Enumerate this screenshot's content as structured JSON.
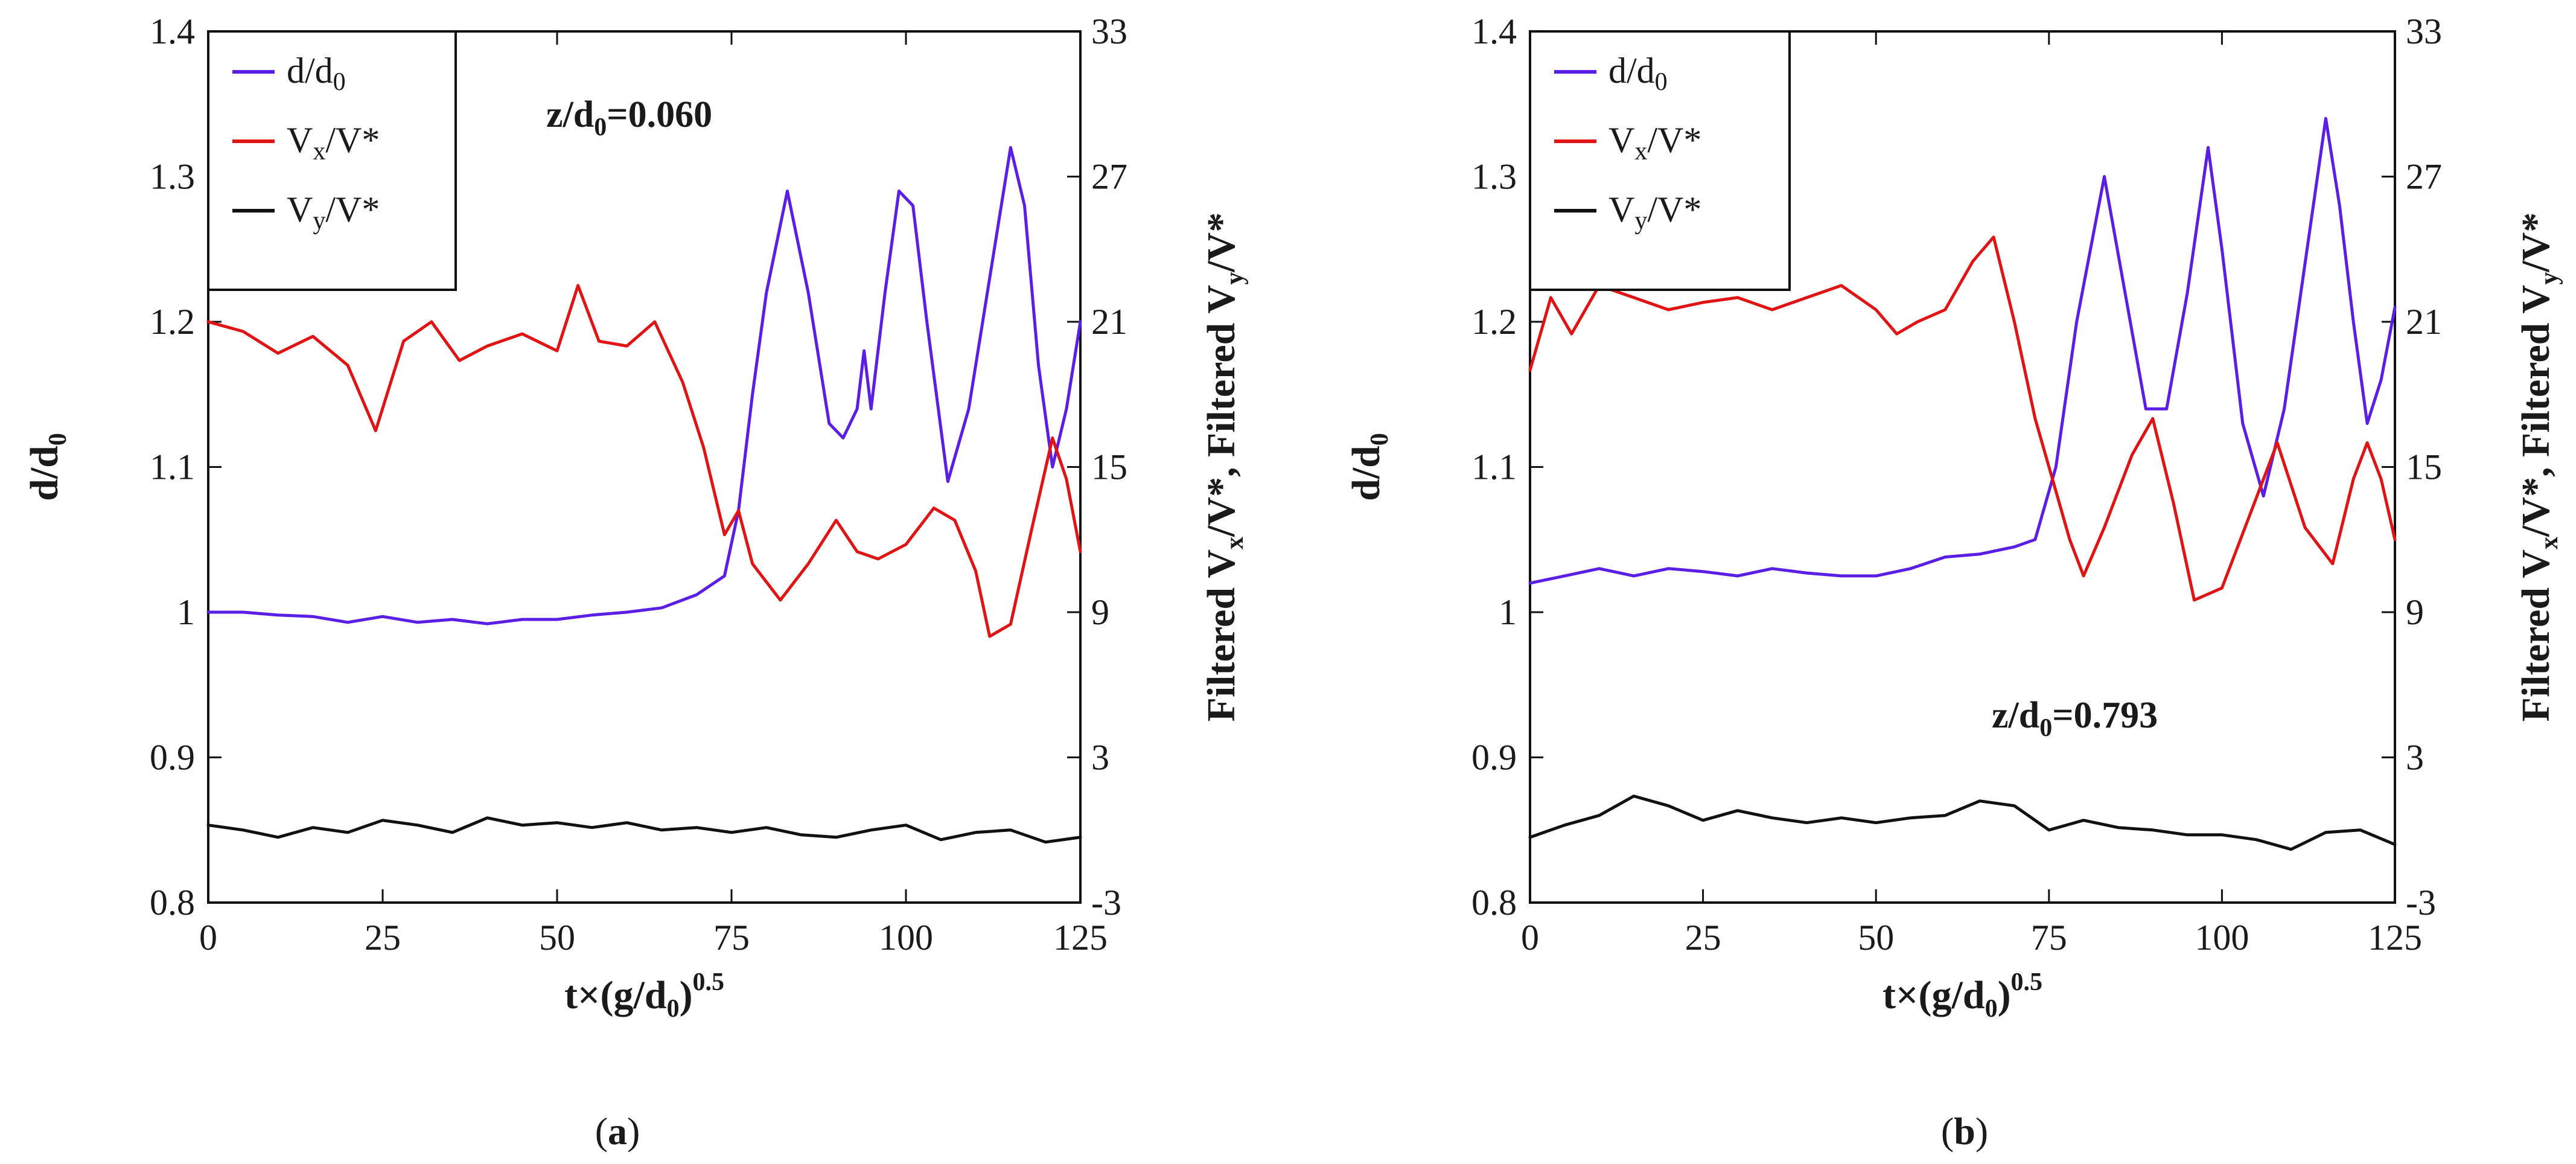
{
  "chart_data": [
    {
      "type": "line",
      "panel_caption": "a",
      "annotation": {
        "prefix": "z/d",
        "sub": "0",
        "suffix": "=0.060"
      },
      "xlabel": {
        "base": "t×(g/d",
        "sub": "0",
        "close": ")",
        "sup": "0.5"
      },
      "ylabel_left": {
        "base": "d/d",
        "sub": "0"
      },
      "ylabel_right": "Filtered Vₓ/V*, Filtered Vᵧ/V*",
      "ylabel_right_parts": {
        "a": "Filtered V",
        "a_sub": "x",
        "b": "/V*, Filtered V",
        "b_sub": "y",
        "c": "/V*"
      },
      "xlim": [
        0,
        125
      ],
      "ylim_left": [
        0.8,
        1.4
      ],
      "ylim_right": [
        -3,
        33
      ],
      "xticks": [
        "0",
        "25",
        "50",
        "75",
        "100",
        "125"
      ],
      "yticks_left": [
        "0.8",
        "0.9",
        "1",
        "1.1",
        "1.2",
        "1.3",
        "1.4"
      ],
      "yticks_right": [
        "-3",
        "3",
        "9",
        "15",
        "21",
        "27",
        "33"
      ],
      "legend_position": "top-left",
      "series": [
        {
          "name": "d/d0",
          "label_base": "d/d",
          "label_sub": "0",
          "axis": "left",
          "color": "#5a1ee6",
          "x": [
            0,
            5,
            10,
            15,
            20,
            25,
            30,
            35,
            40,
            45,
            50,
            55,
            60,
            65,
            70,
            74,
            76,
            78,
            80,
            83,
            86,
            89,
            91,
            93,
            94,
            95,
            97,
            99,
            101,
            103,
            106,
            109,
            112,
            115,
            117,
            119,
            121,
            123,
            125
          ],
          "values": [
            1.0,
            1.0,
            0.998,
            0.997,
            0.993,
            0.997,
            0.993,
            0.995,
            0.992,
            0.995,
            0.995,
            0.998,
            1.0,
            1.003,
            1.012,
            1.025,
            1.07,
            1.15,
            1.22,
            1.29,
            1.22,
            1.13,
            1.12,
            1.14,
            1.18,
            1.14,
            1.22,
            1.29,
            1.28,
            1.2,
            1.09,
            1.14,
            1.23,
            1.32,
            1.28,
            1.17,
            1.1,
            1.14,
            1.2
          ]
        },
        {
          "name": "Vx/V*",
          "label_base": "V",
          "label_sub": "x",
          "label_suffix": "/V*",
          "axis": "right",
          "color": "#e01414",
          "x": [
            0,
            5,
            10,
            15,
            20,
            24,
            28,
            32,
            36,
            40,
            45,
            50,
            53,
            56,
            60,
            64,
            68,
            71,
            74,
            76,
            78,
            82,
            86,
            90,
            93,
            96,
            100,
            104,
            107,
            110,
            112,
            115,
            118,
            121,
            123,
            125
          ],
          "values": [
            21,
            20.6,
            19.7,
            20.4,
            19.2,
            16.5,
            20.2,
            21,
            19.4,
            20,
            20.5,
            19.8,
            22.5,
            20.2,
            20,
            21,
            18.5,
            15.8,
            12.2,
            13.2,
            11,
            9.5,
            11,
            12.8,
            11.5,
            11.2,
            11.8,
            13.3,
            12.8,
            10.7,
            8,
            8.5,
            12.4,
            16.2,
            14.5,
            11.5
          ]
        },
        {
          "name": "Vy/V*",
          "label_base": "V",
          "label_sub": "y",
          "label_suffix": "/V*",
          "axis": "right",
          "color": "#111111",
          "x": [
            0,
            5,
            10,
            15,
            20,
            25,
            30,
            35,
            40,
            45,
            50,
            55,
            60,
            65,
            70,
            75,
            80,
            85,
            90,
            95,
            100,
            105,
            110,
            115,
            120,
            125
          ],
          "values": [
            0.2,
            0.0,
            -0.3,
            0.1,
            -0.1,
            0.4,
            0.2,
            -0.1,
            0.5,
            0.2,
            0.3,
            0.1,
            0.3,
            0.0,
            0.1,
            -0.1,
            0.1,
            -0.2,
            -0.3,
            0.0,
            0.2,
            -0.4,
            -0.1,
            0.0,
            -0.5,
            -0.3
          ]
        }
      ]
    },
    {
      "type": "line",
      "panel_caption": "b",
      "annotation": {
        "prefix": "z/d",
        "sub": "0",
        "suffix": "=0.793"
      },
      "xlabel": {
        "base": "t×(g/d",
        "sub": "0",
        "close": ")",
        "sup": "0.5"
      },
      "ylabel_left": {
        "base": "d/d",
        "sub": "0"
      },
      "ylabel_right": "Filtered Vₓ/V*, Filtered Vᵧ/V*",
      "ylabel_right_parts": {
        "a": "Filtered V",
        "a_sub": "x",
        "b": "/V*, Filtered V",
        "b_sub": "y",
        "c": "/V*"
      },
      "xlim": [
        0,
        125
      ],
      "ylim_left": [
        0.8,
        1.4
      ],
      "ylim_right": [
        -3,
        33
      ],
      "xticks": [
        "0",
        "25",
        "50",
        "75",
        "100",
        "125"
      ],
      "yticks_left": [
        "0.8",
        "0.9",
        "1",
        "1.1",
        "1.2",
        "1.3",
        "1.4"
      ],
      "yticks_right": [
        "-3",
        "3",
        "9",
        "15",
        "21",
        "27",
        "33"
      ],
      "legend_position": "top-left",
      "series": [
        {
          "name": "d/d0",
          "label_base": "d/d",
          "label_sub": "0",
          "axis": "left",
          "color": "#5a1ee6",
          "x": [
            0,
            5,
            10,
            15,
            20,
            25,
            30,
            35,
            40,
            45,
            50,
            55,
            60,
            65,
            70,
            73,
            76,
            79,
            83,
            86,
            89,
            92,
            95,
            98,
            100,
            103,
            106,
            109,
            112,
            115,
            117,
            119,
            121,
            123,
            125
          ],
          "values": [
            1.02,
            1.025,
            1.03,
            1.025,
            1.03,
            1.028,
            1.025,
            1.03,
            1.027,
            1.025,
            1.025,
            1.03,
            1.038,
            1.04,
            1.045,
            1.05,
            1.1,
            1.2,
            1.3,
            1.22,
            1.14,
            1.14,
            1.22,
            1.32,
            1.25,
            1.13,
            1.08,
            1.14,
            1.24,
            1.34,
            1.28,
            1.2,
            1.13,
            1.16,
            1.21
          ]
        },
        {
          "name": "Vx/V*",
          "label_base": "V",
          "label_sub": "x",
          "label_suffix": "/V*",
          "axis": "right",
          "color": "#e01414",
          "x": [
            0,
            3,
            6,
            10,
            15,
            20,
            25,
            30,
            35,
            40,
            45,
            50,
            53,
            56,
            60,
            64,
            67,
            70,
            73,
            76,
            78,
            80,
            83,
            87,
            90,
            93,
            96,
            100,
            104,
            108,
            112,
            116,
            119,
            121,
            123,
            125
          ],
          "values": [
            19,
            22,
            20.5,
            22.5,
            22,
            21.5,
            21.8,
            22,
            21.5,
            22,
            22.5,
            21.5,
            20.5,
            21,
            21.5,
            23.5,
            24.5,
            21,
            17,
            14,
            12,
            10.5,
            12.5,
            15.5,
            17,
            13.5,
            9.5,
            10,
            13,
            16,
            12.5,
            11,
            14.5,
            16,
            14.5,
            12
          ]
        },
        {
          "name": "Vy/V*",
          "label_base": "V",
          "label_sub": "y",
          "label_suffix": "/V*",
          "axis": "right",
          "color": "#111111",
          "x": [
            0,
            5,
            10,
            15,
            20,
            25,
            30,
            35,
            40,
            45,
            50,
            55,
            60,
            65,
            70,
            75,
            80,
            85,
            90,
            95,
            100,
            105,
            110,
            115,
            120,
            125
          ],
          "values": [
            -0.3,
            0.2,
            0.6,
            1.4,
            1.0,
            0.4,
            0.8,
            0.5,
            0.3,
            0.5,
            0.3,
            0.5,
            0.6,
            1.2,
            1.0,
            0.0,
            0.4,
            0.1,
            0.0,
            -0.2,
            -0.2,
            -0.4,
            -0.8,
            -0.1,
            0.0,
            -0.6
          ]
        }
      ]
    }
  ]
}
